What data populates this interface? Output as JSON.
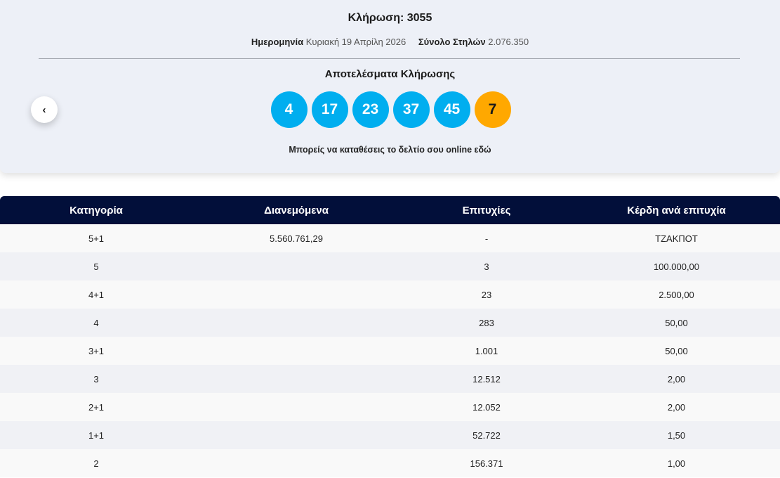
{
  "draw": {
    "title": "Κλήρωση: 3055",
    "date_label": "Ημερομηνία",
    "date_value": "Κυριακή 19 Απρίλη 2026",
    "total_label": "Σύνολο Στηλών",
    "total_value": "2.076.350",
    "results_title": "Αποτελέσματα Κλήρωσης",
    "numbers": [
      "4",
      "17",
      "23",
      "37",
      "45"
    ],
    "bonus": "7",
    "online_text": "Μπορείς να καταθέσεις το δελτίο σου online εδώ",
    "prev_icon": "chevron-left-icon"
  },
  "colors": {
    "ball": "#00aeef",
    "bonus": "#ffa800",
    "table_header": "#020f3a"
  },
  "table": {
    "headers": [
      "Κατηγορία",
      "Διανεμόμενα",
      "Επιτυχίες",
      "Κέρδη ανά επιτυχία"
    ],
    "rows": [
      [
        "5+1",
        "5.560.761,29",
        "-",
        "ΤΖΑΚΠΟΤ"
      ],
      [
        "5",
        "",
        "3",
        "100.000,00"
      ],
      [
        "4+1",
        "",
        "23",
        "2.500,00"
      ],
      [
        "4",
        "",
        "283",
        "50,00"
      ],
      [
        "3+1",
        "",
        "1.001",
        "50,00"
      ],
      [
        "3",
        "",
        "12.512",
        "2,00"
      ],
      [
        "2+1",
        "",
        "12.052",
        "2,00"
      ],
      [
        "1+1",
        "",
        "52.722",
        "1,50"
      ],
      [
        "2",
        "",
        "156.371",
        "1,00"
      ]
    ]
  }
}
